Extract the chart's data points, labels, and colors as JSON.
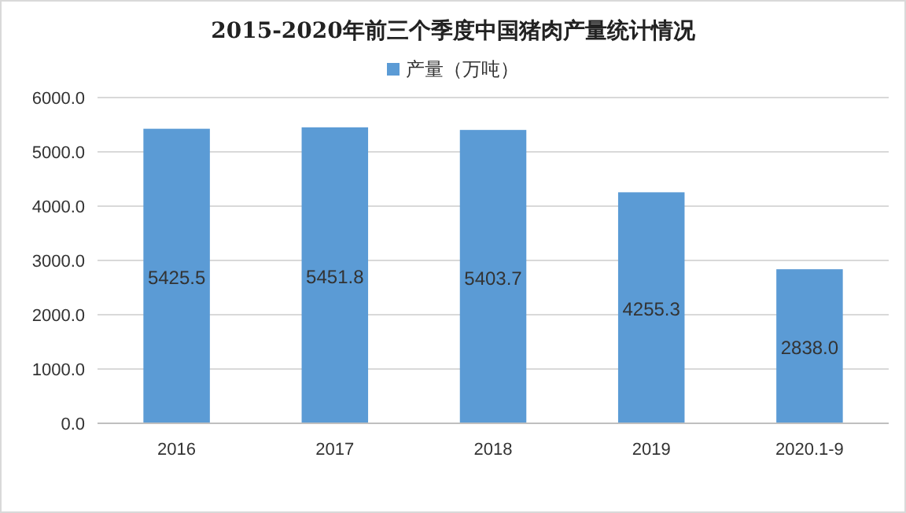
{
  "chart_data": {
    "type": "bar",
    "title": "2015-2020年前三个季度中国猪肉产量统计情况",
    "categories": [
      "2016",
      "2017",
      "2018",
      "2019",
      "2020.1-9"
    ],
    "series": [
      {
        "name": "产量（万吨）",
        "color": "#5b9bd5",
        "values": [
          5425.5,
          5451.8,
          5403.7,
          4255.3,
          2838.0
        ],
        "value_labels": [
          "5425.5",
          "5451.8",
          "5403.7",
          "4255.3",
          "2838.0"
        ]
      }
    ],
    "ylim": [
      0,
      6000
    ],
    "yticks": [
      {
        "value": 0,
        "label": "0.0"
      },
      {
        "value": 1000,
        "label": "1000.0"
      },
      {
        "value": 2000,
        "label": "2000.0"
      },
      {
        "value": 3000,
        "label": "3000.0"
      },
      {
        "value": 4000,
        "label": "4000.0"
      },
      {
        "value": 5000,
        "label": "5000.0"
      },
      {
        "value": 6000,
        "label": "6000.0"
      }
    ],
    "grid": "y",
    "legend": "top"
  }
}
